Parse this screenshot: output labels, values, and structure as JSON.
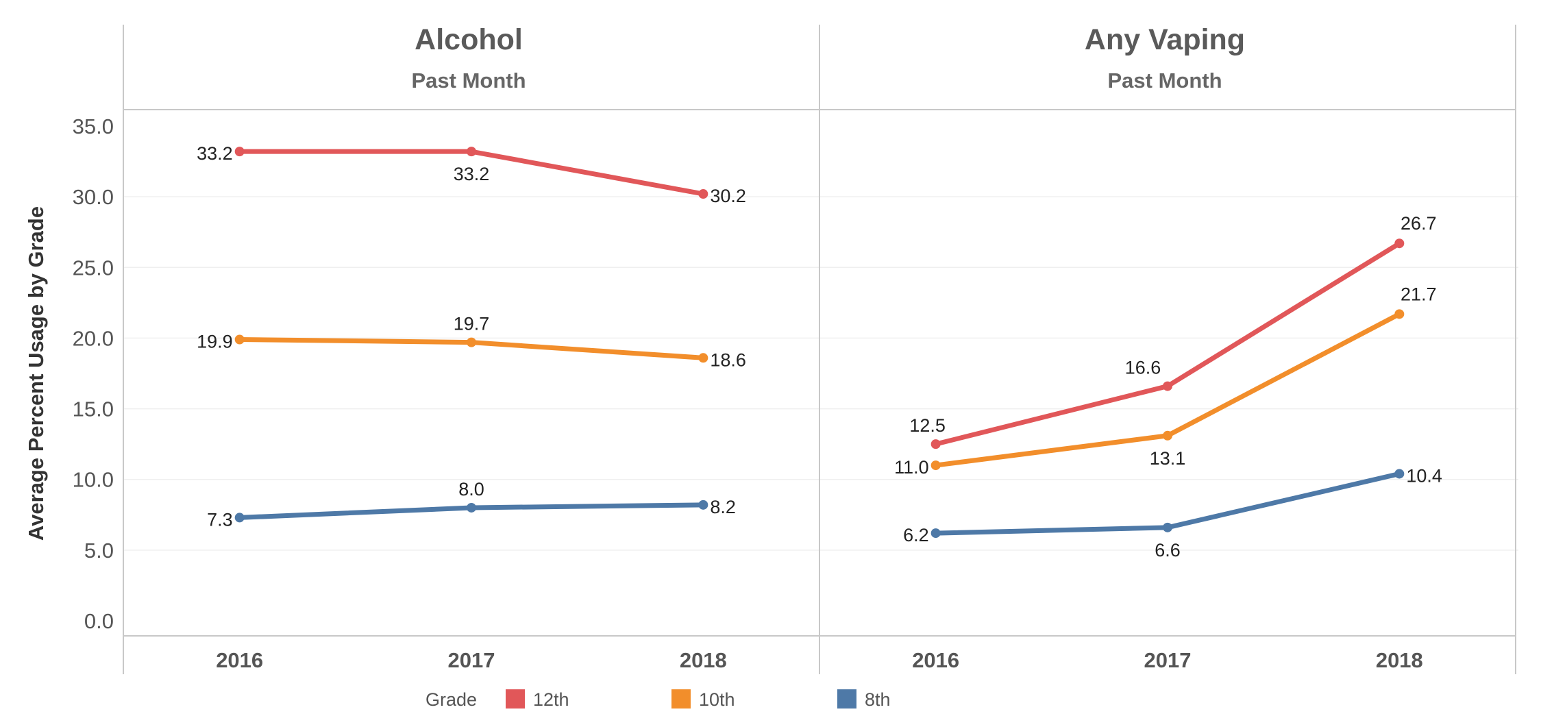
{
  "chart_data": {
    "type": "line",
    "ylabel": "Average Percent Usage by Grade",
    "ylim": [
      0,
      35
    ],
    "y_ticks": [
      "0.0",
      "5.0",
      "10.0",
      "15.0",
      "20.0",
      "25.0",
      "30.0",
      "35.0"
    ],
    "y_tick_values": [
      0,
      5,
      10,
      15,
      20,
      25,
      30,
      35
    ],
    "x": [
      "2016",
      "2017",
      "2018"
    ],
    "legend": {
      "title": "Grade",
      "placement": "bottom",
      "entries": [
        {
          "name": "12th",
          "color": "#e15759"
        },
        {
          "name": "10th",
          "color": "#f28e2b"
        },
        {
          "name": "8th",
          "color": "#4e79a7"
        }
      ]
    },
    "grid": true,
    "panels": [
      {
        "title": "Alcohol",
        "subtitle": "Past Month",
        "series": [
          {
            "name": "12th",
            "color": "#e15759",
            "values": [
              33.2,
              33.2,
              30.2
            ],
            "labels": [
              "33.2",
              "33.2",
              "30.2"
            ]
          },
          {
            "name": "10th",
            "color": "#f28e2b",
            "values": [
              19.9,
              19.7,
              18.6
            ],
            "labels": [
              "19.9",
              "19.7",
              "18.6"
            ]
          },
          {
            "name": "8th",
            "color": "#4e79a7",
            "values": [
              7.3,
              8.0,
              8.2
            ],
            "labels": [
              "7.3",
              "8.0",
              "8.2"
            ]
          }
        ]
      },
      {
        "title": "Any Vaping",
        "subtitle": "Past Month",
        "series": [
          {
            "name": "12th",
            "color": "#e15759",
            "values": [
              12.5,
              16.6,
              26.7
            ],
            "labels": [
              "12.5",
              "16.6",
              "26.7"
            ]
          },
          {
            "name": "10th",
            "color": "#f28e2b",
            "values": [
              11.0,
              13.1,
              21.7
            ],
            "labels": [
              "11.0",
              "13.1",
              "21.7"
            ]
          },
          {
            "name": "8th",
            "color": "#4e79a7",
            "values": [
              6.2,
              6.6,
              10.4
            ],
            "labels": [
              "6.2",
              "6.6",
              "10.4"
            ]
          }
        ]
      }
    ]
  }
}
